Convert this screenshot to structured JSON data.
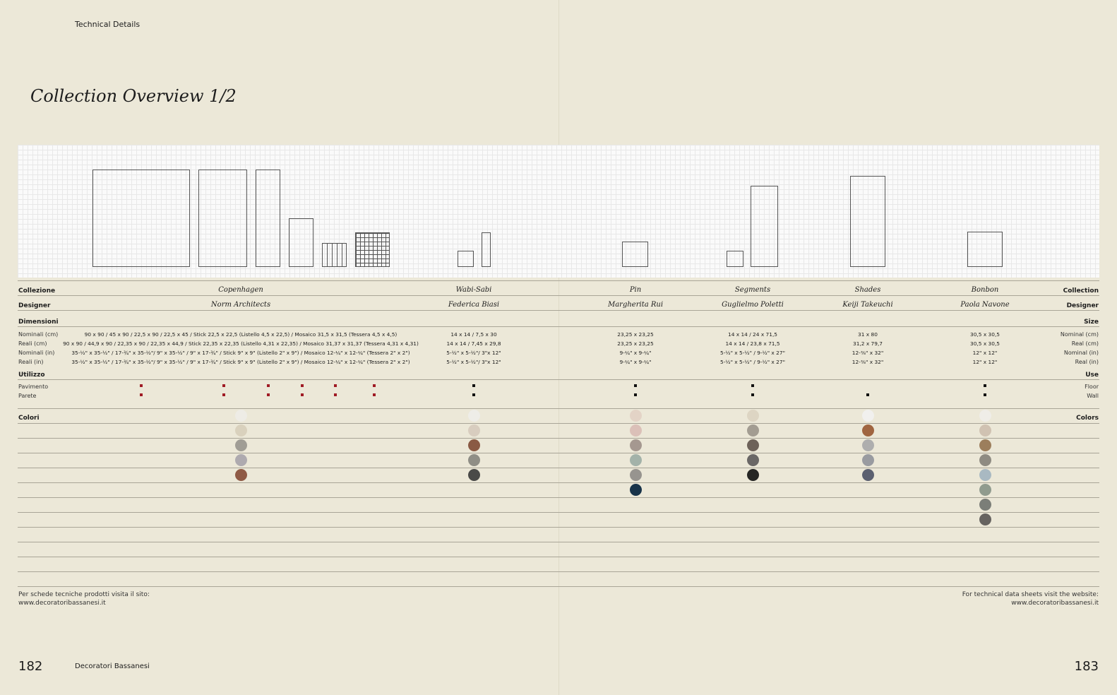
{
  "header": {
    "section": "Technical Details",
    "title": "Collection Overview 1/2"
  },
  "labels": {
    "collection_it": "Collezione",
    "collection_en": "Collection",
    "designer_it": "Designer",
    "designer_en": "Designer",
    "dimensions_it": "Dimensioni",
    "dimensions_en": "Size",
    "nominal_cm_it": "Nominali (cm)",
    "nominal_cm_en": "Nominal (cm)",
    "real_cm_it": "Reali (cm)",
    "real_cm_en": "Real (cm)",
    "nominal_in_it": "Nominali (in)",
    "nominal_in_en": "Nominal (in)",
    "real_in_it": "Reali (in)",
    "real_in_en": "Real (in)",
    "use_it": "Utilizzo",
    "use_en": "Use",
    "floor_it": "Pavimento",
    "floor_en": "Floor",
    "wall_it": "Parete",
    "wall_en": "Wall",
    "colors_it": "Colori",
    "colors_en": "Colors"
  },
  "collections": [
    {
      "name": "Copenhagen",
      "designer": "Norm Architects",
      "nominal_cm": "90 x 90 / 45 x 90 / 22,5 x 90 / 22,5 x 45 / Stick 22,5 x 22,5 (Listello 4,5 x 22,5) / Mosaico 31,5 x 31,5 (Tessera 4,5 x 4,5)",
      "real_cm": "90 x 90 / 44,9 x 90 / 22,35 x 90 / 22,35 x 44,9 / Stick 22,35 x 22,35 (Listello 4,31 x 22,35) / Mosaico 31,37 x 31,37 (Tessera 4,31 x 4,31)",
      "nominal_in": "35-½\" x 35-½\" / 17-¾\" x 35-½\"/ 9\" x 35-½\" / 9\" x 17-¾\" / Stick 9\" x 9\" (Listello 2\" x 9\") / Mosaico 12-¼\" x 12-¼\" (Tessera 2\" x 2\")",
      "real_in": "35-½\" x 35-½\" / 17-¾\" x 35-½\"/ 9\" x 35-½\" / 9\" x 17-¾\" / Stick 9\" x 9\" (Listello 2\" x 9\") / Mosaico 12-¼\" x 12-¼\" (Tessera 2\" x 2\")",
      "floor": true,
      "wall": true,
      "colors": [
        "#eeece6",
        "#d9d1bd",
        "#a09d95",
        "#aeaaaf",
        "#8f5a45"
      ]
    },
    {
      "name": "Wabi-Sabi",
      "designer": "Federica Biasi",
      "nominal_cm": "14 x 14 / 7,5 x 30",
      "real_cm": "14 x 14 / 7,45 x 29,8",
      "nominal_in": "5-½\" x 5-½\"/ 3\"x 12\"",
      "real_in": "5-½\" x 5-½\"/ 3\"x 12\"",
      "floor": true,
      "wall": true,
      "colors": [
        "#eeede8",
        "#d8cdbf",
        "#8a5a44",
        "#8f8e86",
        "#4a4a48"
      ]
    },
    {
      "name": "Pin",
      "designer": "Margherita Rui",
      "nominal_cm": "23,25 x 23,25",
      "real_cm": "23,25 x 23,25",
      "nominal_in": "9-¼\" x 9-¼\"",
      "real_in": "9-¼\" x 9-¼\"",
      "floor": true,
      "wall": true,
      "colors": [
        "#e3d3c6",
        "#dbc0b8",
        "#a59890",
        "#a3b2a9",
        "#97948f",
        "#183349"
      ]
    },
    {
      "name": "Segments",
      "designer": "Guglielmo Poletti",
      "nominal_cm": "14 x 14 / 24 x 71,5",
      "real_cm": "14 x 14 / 23,8 x 71,5",
      "nominal_in": "5-½\" x 5-½\" / 9-½\" x 27\"",
      "real_in": "5-½\" x 5-½\" / 9-½\" x 27\"",
      "floor": true,
      "wall": true,
      "colors": [
        "#ddd5c3",
        "#a39d92",
        "#6d6259",
        "#6a6766",
        "#262624"
      ]
    },
    {
      "name": "Shades",
      "designer": "Keiji Takeuchi",
      "nominal_cm": "31 x 80",
      "real_cm": "31,2 x 79,7",
      "nominal_in": "12-⅜\" x 32\"",
      "real_in": "12-⅜\" x 32\"",
      "floor": false,
      "wall": true,
      "colors": [
        "#f1f0ee",
        "#a06540",
        "#aeaeae",
        "#999ba0",
        "#5b6070"
      ]
    },
    {
      "name": "Bonbon",
      "designer": "Paola Navone",
      "nominal_cm": "30,5 x 30,5",
      "real_cm": "30,5 x 30,5",
      "nominal_in": "12\" x 12\"",
      "real_in": "12\" x 12\"",
      "floor": true,
      "wall": true,
      "colors": [
        "#efede8",
        "#d0c2b2",
        "#9c7e5c",
        "#8e8b82",
        "#a9b9c2",
        "#909b8e",
        "#7b7e78",
        "#666360"
      ]
    }
  ],
  "footer": {
    "left_line1": "Per schede tecniche prodotti visita il sito:",
    "left_line2": "www.decoratoribassanesi.it",
    "right_line1": "For technical data sheets visit the website:",
    "right_line2": "www.decoratoribassanesi.it",
    "page_left": "182",
    "page_right": "183",
    "brand": "Decoratori Bassanesi"
  }
}
